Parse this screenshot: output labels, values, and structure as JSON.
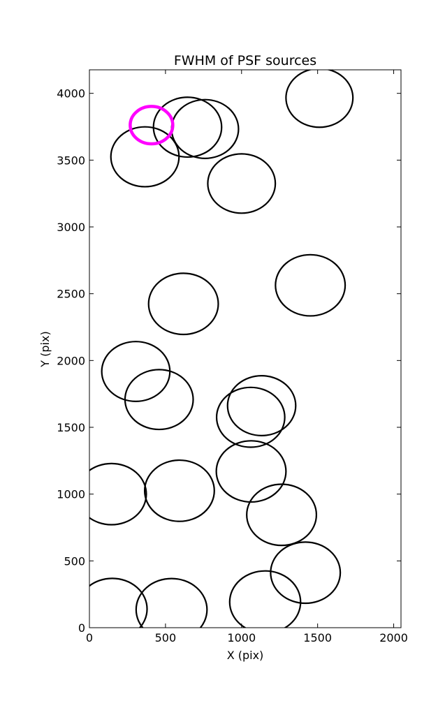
{
  "chart_data": {
    "type": "scatter",
    "marker": "circle",
    "title": "FWHM of PSF sources",
    "xlabel": "X (pix)",
    "ylabel": "Y (pix)",
    "xlim": [
      0,
      2048
    ],
    "ylim": [
      0,
      4176
    ],
    "xticks": [
      0,
      500,
      1000,
      1500,
      2000
    ],
    "yticks": [
      0,
      500,
      1000,
      1500,
      2000,
      2500,
      3000,
      3500,
      4000
    ],
    "xtick_labels": [
      "0",
      "500",
      "1000",
      "1500",
      "2000"
    ],
    "ytick_labels": [
      "0",
      "500",
      "1000",
      "1500",
      "2000",
      "2500",
      "3000",
      "3500",
      "4000"
    ],
    "grid": false,
    "legend": "none",
    "colors": {
      "sources": "#000000",
      "highlight": "#ff00ff"
    },
    "series": [
      {
        "highlight": false,
        "points": [
          {
            "x": 645,
            "y": 3747,
            "r": 224
          },
          {
            "x": 760,
            "y": 3733,
            "r": 220
          },
          {
            "x": 1512,
            "y": 3966,
            "r": 220
          },
          {
            "x": 365,
            "y": 3525,
            "r": 224
          },
          {
            "x": 1000,
            "y": 3325,
            "r": 222
          },
          {
            "x": 1452,
            "y": 2563,
            "r": 229
          },
          {
            "x": 618,
            "y": 2424,
            "r": 229
          },
          {
            "x": 305,
            "y": 1918,
            "r": 224
          },
          {
            "x": 458,
            "y": 1708,
            "r": 224
          },
          {
            "x": 1132,
            "y": 1662,
            "r": 224
          },
          {
            "x": 1060,
            "y": 1575,
            "r": 224
          },
          {
            "x": 1063,
            "y": 1170,
            "r": 229
          },
          {
            "x": 145,
            "y": 1000,
            "r": 229
          },
          {
            "x": 592,
            "y": 1025,
            "r": 229
          },
          {
            "x": 1263,
            "y": 845,
            "r": 229
          },
          {
            "x": 1420,
            "y": 412,
            "r": 229
          },
          {
            "x": 150,
            "y": 140,
            "r": 229
          },
          {
            "x": 540,
            "y": 135,
            "r": 233
          },
          {
            "x": 1155,
            "y": 192,
            "r": 233
          }
        ]
      },
      {
        "highlight": true,
        "points": [
          {
            "x": 408,
            "y": 3762,
            "r": 140
          }
        ]
      }
    ]
  }
}
